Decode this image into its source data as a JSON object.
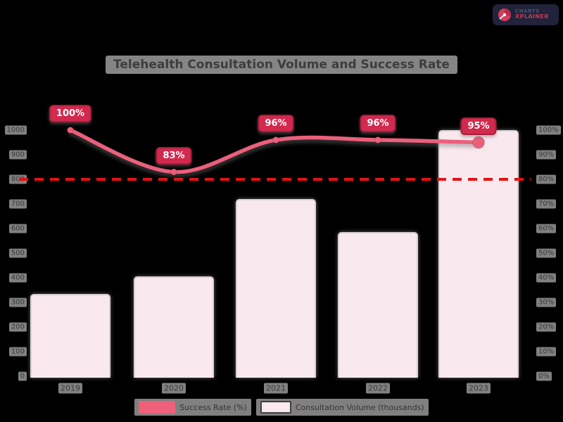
{
  "logo": {
    "line1": "CHARTS",
    "line2": "XPLAINER"
  },
  "chart_data": {
    "type": "bar",
    "title": "Telehealth Consultation Volume and Success Rate",
    "categories": [
      "2019",
      "2020",
      "2021",
      "2022",
      "2023"
    ],
    "series": [
      {
        "name": "Success Rate (%)",
        "type": "line",
        "axis": "right",
        "values": [
          100,
          83,
          96,
          96,
          95
        ],
        "point_labels": [
          "100%",
          "83%",
          "96%",
          "96%",
          "95%"
        ],
        "color": "#ec5f7b",
        "label_bg": "#d22a4e",
        "label_border": "#a81d3c"
      },
      {
        "name": "Consultation Volume (thousands)",
        "type": "bar",
        "axis": "left",
        "values": [
          335,
          405,
          720,
          585,
          1000
        ],
        "color": "#fae8ef",
        "border_color": "#d8d2d5"
      }
    ],
    "left_axis": {
      "min": 0,
      "max": 1000,
      "step": 100,
      "suffix": ""
    },
    "right_axis": {
      "min": 0,
      "max": 100,
      "step": 10,
      "suffix": "%"
    },
    "threshold": {
      "axis": "right",
      "value": 80,
      "style": "dashed",
      "color": "#e51212"
    },
    "legend_position": "bottom",
    "grid": false
  }
}
